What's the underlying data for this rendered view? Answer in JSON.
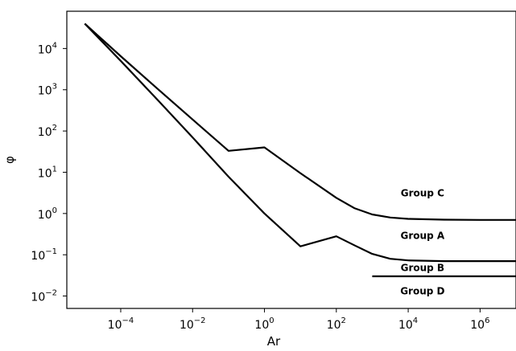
{
  "chart_data": {
    "type": "line",
    "title": "",
    "xlabel": "Ar",
    "ylabel": "φ",
    "xscale": "log",
    "yscale": "log",
    "xlim": [
      3.16e-06,
      10000000.0
    ],
    "ylim": [
      0.005,
      80000
    ],
    "grid": false,
    "legend": "none",
    "x_ticks": [
      {
        "exp": -4,
        "label": "10",
        "sup": "−4"
      },
      {
        "exp": -2,
        "label": "10",
        "sup": "−2"
      },
      {
        "exp": 0,
        "label": "10",
        "sup": "0"
      },
      {
        "exp": 2,
        "label": "10",
        "sup": "2"
      },
      {
        "exp": 4,
        "label": "10",
        "sup": "4"
      },
      {
        "exp": 6,
        "label": "10",
        "sup": "6"
      }
    ],
    "y_ticks": [
      {
        "exp": 4,
        "label": "10",
        "sup": "4"
      },
      {
        "exp": 3,
        "label": "10",
        "sup": "3"
      },
      {
        "exp": 2,
        "label": "10",
        "sup": "2"
      },
      {
        "exp": 1,
        "label": "10",
        "sup": "1"
      },
      {
        "exp": 0,
        "label": "10",
        "sup": "0"
      },
      {
        "exp": -1,
        "label": "10",
        "sup": "−1"
      },
      {
        "exp": -2,
        "label": "10",
        "sup": "−2"
      }
    ],
    "series": [
      {
        "x": [
          1e-05,
          0.0001,
          0.001,
          0.01,
          0.1,
          1,
          10,
          100,
          316,
          1000,
          3162,
          10000,
          100000,
          1000000,
          10000000
        ],
        "y": [
          40000,
          5000,
          600,
          70,
          7.8,
          1.0,
          0.16,
          0.28,
          0.17,
          0.105,
          0.08,
          0.073,
          0.07,
          0.07,
          0.07
        ]
      },
      {
        "x": [
          1e-05,
          0.0001,
          0.001,
          0.01,
          0.1,
          1,
          10,
          100,
          316,
          1000,
          3162,
          10000,
          100000,
          1000000,
          10000000
        ],
        "y": [
          40000,
          6500,
          1100,
          190,
          33,
          40,
          9.5,
          2.4,
          1.35,
          0.95,
          0.8,
          0.74,
          0.71,
          0.7,
          0.7
        ]
      },
      {
        "x": [
          1000,
          10000000
        ],
        "y": [
          0.03,
          0.03
        ]
      }
    ],
    "annotations": [
      {
        "text": "Group C",
        "x": 25000,
        "y": 2.6
      },
      {
        "text": "Group A",
        "x": 25000,
        "y": 0.24
      },
      {
        "text": "Group B",
        "x": 25000,
        "y": 0.04
      },
      {
        "text": "Group D",
        "x": 25000,
        "y": 0.011
      }
    ]
  }
}
